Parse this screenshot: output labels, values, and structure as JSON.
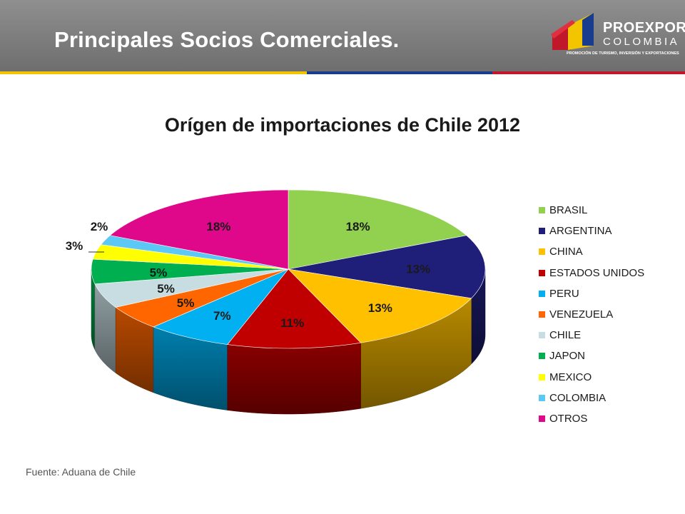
{
  "header": {
    "title": "Principales Socios Comerciales.",
    "logo_name": "PROEXPORT",
    "logo_country": "COLOMBIA",
    "logo_tagline": "PROMOCIÓN DE TURISMO, INVERSIÓN Y EXPORTACIONES",
    "stripe_colors": [
      "#f2c500",
      "#1a3c8e",
      "#c0182a"
    ]
  },
  "chart_data": {
    "type": "pie",
    "title": "Orígen de importaciones de Chile 2012",
    "legend_position": "right",
    "slices": [
      {
        "label": "BRASIL",
        "value": 18,
        "value_label": "18%",
        "color": "#92d050"
      },
      {
        "label": "ARGENTINA",
        "value": 13,
        "value_label": "13%",
        "color": "#1f1f7a"
      },
      {
        "label": "CHINA",
        "value": 13,
        "value_label": "13%",
        "color": "#ffc000"
      },
      {
        "label": "ESTADOS UNIDOS",
        "value": 11,
        "value_label": "11%",
        "color": "#c00000"
      },
      {
        "label": "PERU",
        "value": 7,
        "value_label": "7%",
        "color": "#00b0f0"
      },
      {
        "label": "VENEZUELA",
        "value": 5,
        "value_label": "5%",
        "color": "#ff6600"
      },
      {
        "label": "CHILE",
        "value": 5,
        "value_label": "5%",
        "color": "#c8dde2"
      },
      {
        "label": "JAPON",
        "value": 5,
        "value_label": "5%",
        "color": "#00b050"
      },
      {
        "label": "MEXICO",
        "value": 3,
        "value_label": "3%",
        "color": "#ffff00"
      },
      {
        "label": "COLOMBIA",
        "value": 2,
        "value_label": "2%",
        "color": "#5bc8f5"
      },
      {
        "label": "OTROS",
        "value": 18,
        "value_label": "18%",
        "color": "#e0088a"
      }
    ]
  },
  "footer": {
    "source": "Fuente: Aduana de Chile"
  }
}
